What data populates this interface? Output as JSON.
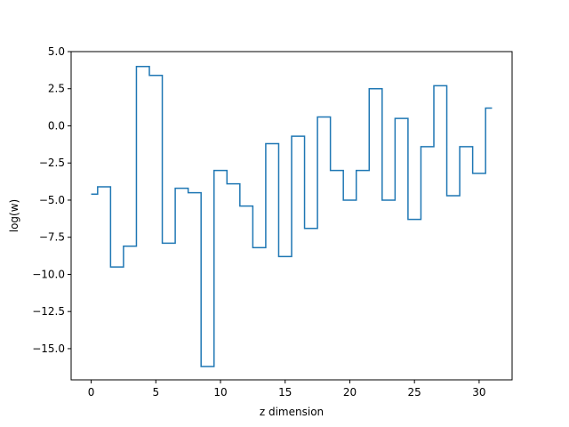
{
  "chart_data": {
    "type": "line",
    "step": "mid",
    "title": "",
    "xlabel": "z dimension",
    "ylabel": "log(w)",
    "xlim": [
      -1.55,
      32.55
    ],
    "ylim": [
      -17.1,
      5.0
    ],
    "xticks": [
      0,
      5,
      10,
      15,
      20,
      25,
      30
    ],
    "xtick_labels": [
      "0",
      "5",
      "10",
      "15",
      "20",
      "25",
      "30"
    ],
    "yticks": [
      5.0,
      2.5,
      0.0,
      -2.5,
      -5.0,
      -7.5,
      -10.0,
      -12.5,
      -15.0
    ],
    "ytick_labels": [
      "5.0",
      "2.5",
      "0.0",
      "−2.5",
      "−5.0",
      "−7.5",
      "−10.0",
      "−12.5",
      "−15.0"
    ],
    "grid": false,
    "series": [
      {
        "color": "#1f77b4",
        "x": [
          0,
          1,
          2,
          3,
          4,
          5,
          6,
          7,
          8,
          9,
          10,
          11,
          12,
          13,
          14,
          15,
          16,
          17,
          18,
          19,
          20,
          21,
          22,
          23,
          24,
          25,
          26,
          27,
          28,
          29,
          30,
          31
        ],
        "values": [
          -4.6,
          -4.1,
          -9.5,
          -8.1,
          4.0,
          3.4,
          -7.9,
          -4.2,
          -4.5,
          -16.2,
          -3.0,
          -3.9,
          -5.4,
          -8.2,
          -1.2,
          -8.8,
          -0.7,
          -6.9,
          0.6,
          -3.0,
          -5.0,
          -3.0,
          2.5,
          -5.0,
          0.5,
          -6.3,
          -1.4,
          2.7,
          -4.7,
          -1.4,
          -3.2,
          1.2
        ]
      }
    ]
  }
}
